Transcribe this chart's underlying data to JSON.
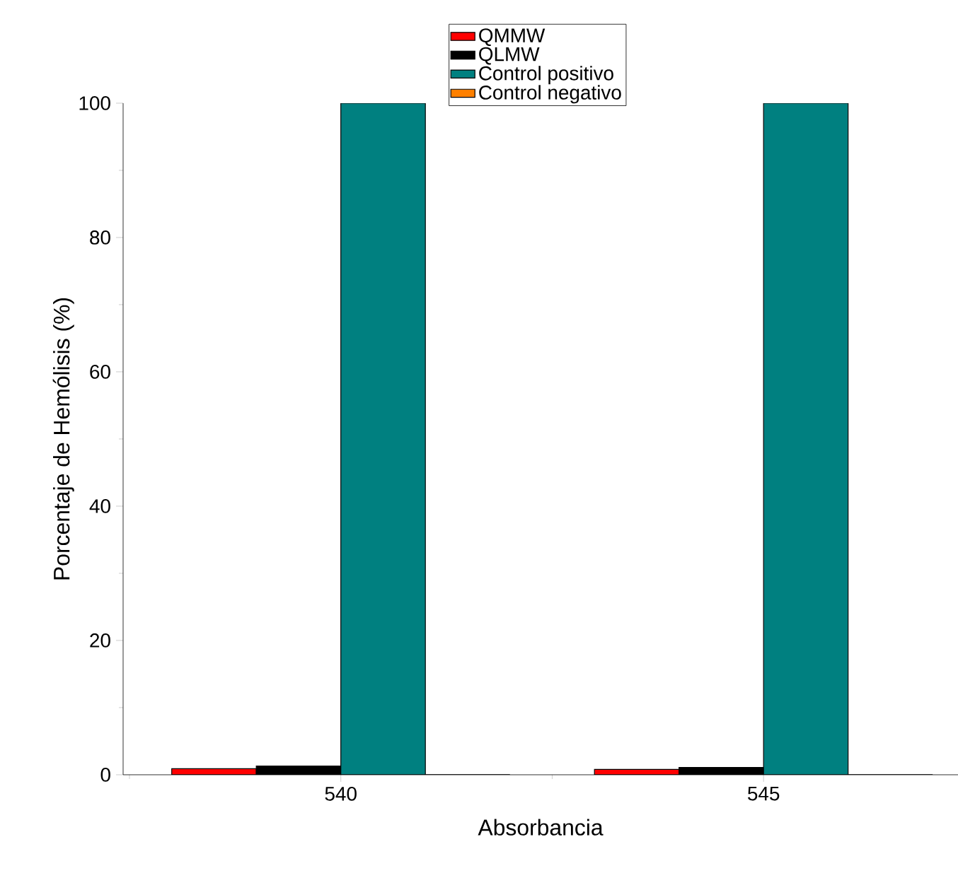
{
  "chart_data": {
    "type": "bar",
    "xlabel": "Absorbancia",
    "ylabel": "Porcentaje de Hemólisis (%)",
    "categories": [
      "540",
      "545"
    ],
    "series": [
      {
        "name": "QMMW",
        "color": "#ff0000",
        "values": [
          0.9,
          0.8
        ]
      },
      {
        "name": "QLMW",
        "color": "#000000",
        "values": [
          1.3,
          1.1
        ]
      },
      {
        "name": "Control positivo",
        "color": "#008080",
        "values": [
          100,
          100
        ]
      },
      {
        "name": "Control negativo",
        "color": "#ff8000",
        "values": [
          0,
          0
        ]
      }
    ],
    "ylim": [
      0,
      100
    ],
    "yticks": [
      0,
      20,
      40,
      60,
      80,
      100
    ],
    "legend": "top"
  }
}
